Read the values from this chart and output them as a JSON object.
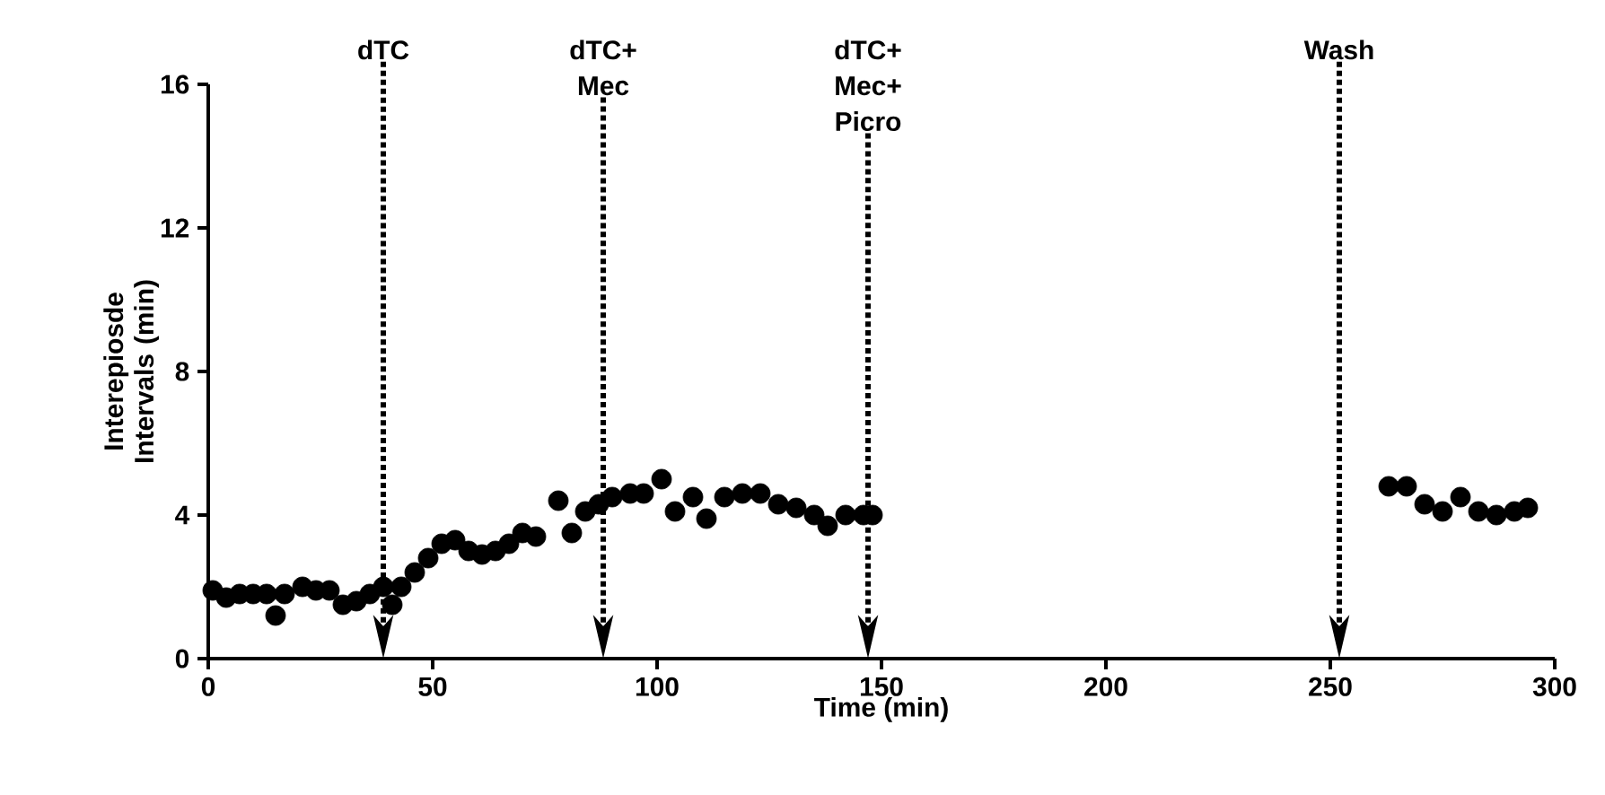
{
  "chart_data": {
    "type": "scatter",
    "xlabel": "Time (min)",
    "ylabel": "Interepiosde Intervals (min)",
    "x": [
      1,
      4,
      7,
      10,
      13,
      15,
      17,
      21,
      24,
      27,
      30,
      33,
      36,
      39,
      41,
      43,
      46,
      49,
      52,
      55,
      58,
      61,
      64,
      67,
      70,
      73,
      78,
      81,
      84,
      87,
      90,
      94,
      97,
      101,
      104,
      108,
      111,
      115,
      119,
      123,
      127,
      131,
      135,
      138,
      142,
      146,
      148,
      263,
      267,
      271,
      275,
      279,
      283,
      287,
      291,
      294
    ],
    "series": [
      {
        "color": "#000000",
        "values": [
          1.9,
          1.7,
          1.8,
          1.8,
          1.8,
          1.2,
          1.8,
          2.0,
          1.9,
          1.9,
          1.5,
          1.6,
          1.8,
          2.0,
          1.5,
          2.0,
          2.4,
          2.8,
          3.2,
          3.3,
          3.0,
          2.9,
          3.0,
          3.2,
          3.5,
          3.4,
          4.4,
          3.5,
          4.1,
          4.3,
          4.5,
          4.6,
          4.6,
          5.0,
          4.1,
          4.5,
          3.9,
          4.5,
          4.6,
          4.6,
          4.3,
          4.2,
          4.0,
          3.7,
          4.0,
          4.0,
          4.0,
          4.8,
          4.8,
          4.3,
          4.1,
          4.5,
          4.1,
          4.0,
          4.1,
          4.2
        ]
      }
    ],
    "xlim": [
      0,
      300
    ],
    "xticks": [
      0,
      50,
      100,
      150,
      200,
      250,
      300
    ],
    "ylim": [
      0,
      16
    ],
    "yticks": [
      0,
      4,
      8,
      12,
      16
    ],
    "grid": false,
    "legend": false,
    "marker": "circle",
    "ref_lines": [
      {
        "axis": "x",
        "value": 39,
        "label": "dTC",
        "line_style": "dotted",
        "color": "#000000"
      },
      {
        "axis": "x",
        "value": 88,
        "label": "dTC+ Mec",
        "line_style": "dotted",
        "color": "#000000"
      },
      {
        "axis": "x",
        "value": 147,
        "label": "dTC+ Mec+ Picro",
        "line_style": "dotted",
        "color": "#000000"
      },
      {
        "axis": "x",
        "value": 252,
        "label": "Wash",
        "line_style": "dotted",
        "color": "#000000"
      }
    ]
  }
}
